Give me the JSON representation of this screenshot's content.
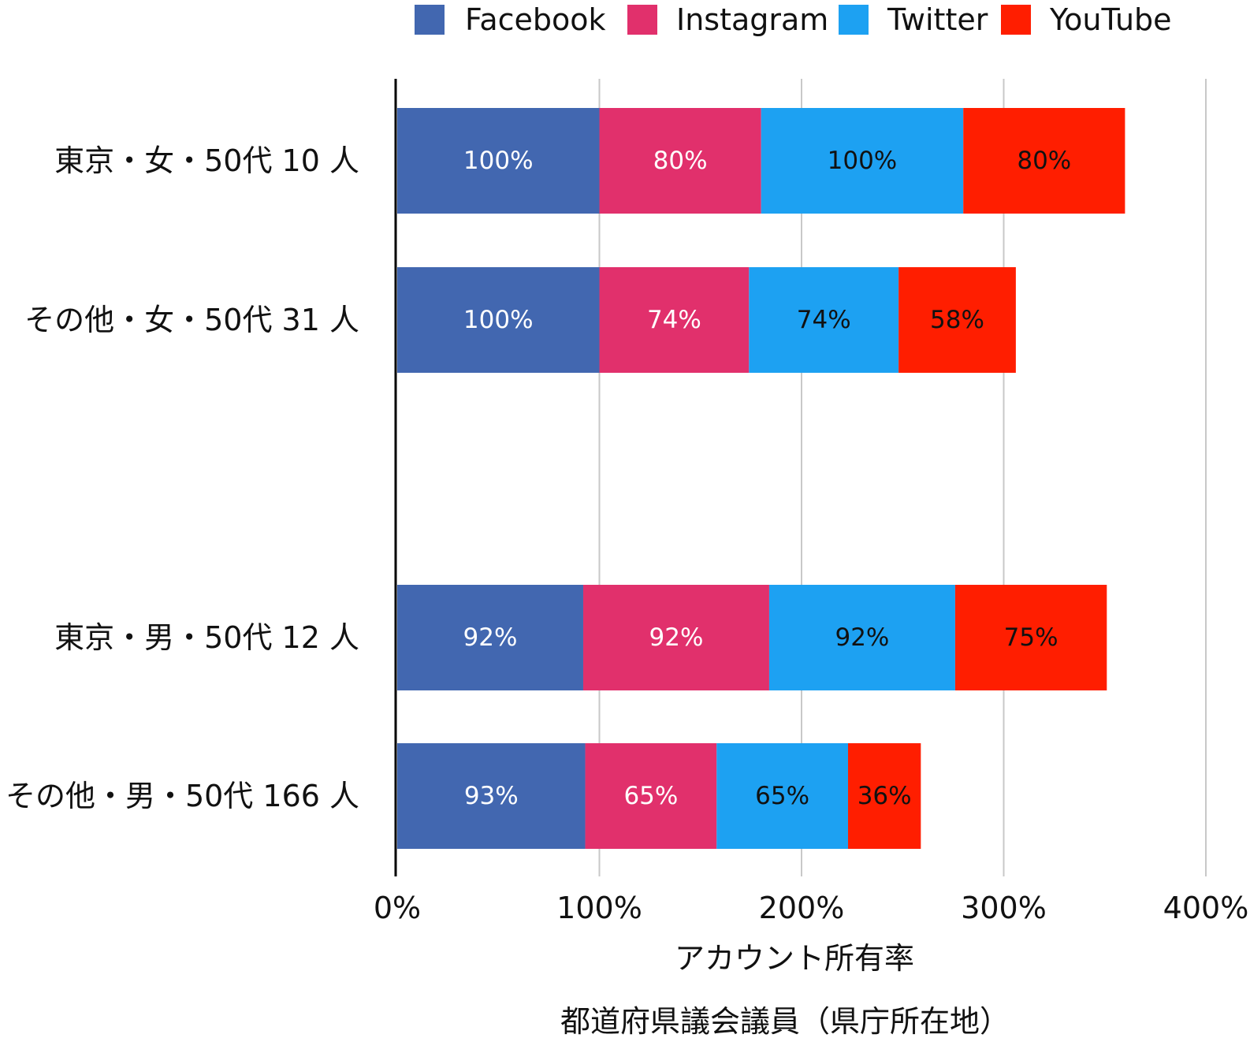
{
  "chart_data": {
    "type": "bar",
    "orientation": "horizontal",
    "stacked": true,
    "title": "",
    "xlabel": "アカウント所有率",
    "caption": "都道府県議会議員（県庁所在地）",
    "ylabel": "",
    "xlim": [
      0,
      400
    ],
    "xticks": [
      "0%",
      "100%",
      "200%",
      "300%",
      "400%"
    ],
    "grid": true,
    "legend_position": "top-right",
    "categories": [
      "東京・女・50代 10 人",
      "その他・女・50代 31 人",
      "東京・男・50代 12 人",
      "その他・男・50代 166 人"
    ],
    "series": [
      {
        "name": "Facebook",
        "color": "#4267B0",
        "label_color": "#ffffff",
        "values": [
          100,
          100,
          92,
          93
        ],
        "labels": [
          "100%",
          "100%",
          "92%",
          "93%"
        ]
      },
      {
        "name": "Instagram",
        "color": "#E1306C",
        "label_color": "#ffffff",
        "values": [
          80,
          74,
          92,
          65
        ],
        "labels": [
          "80%",
          "74%",
          "92%",
          "65%"
        ]
      },
      {
        "name": "Twitter",
        "color": "#1DA1F2",
        "label_color": "#111111",
        "values": [
          100,
          74,
          92,
          65
        ],
        "labels": [
          "100%",
          "74%",
          "92%",
          "65%"
        ]
      },
      {
        "name": "YouTube",
        "color": "#FF1E00",
        "label_color": "#111111",
        "values": [
          80,
          58,
          75,
          36
        ],
        "labels": [
          "80%",
          "58%",
          "75%",
          "36%"
        ]
      }
    ]
  }
}
